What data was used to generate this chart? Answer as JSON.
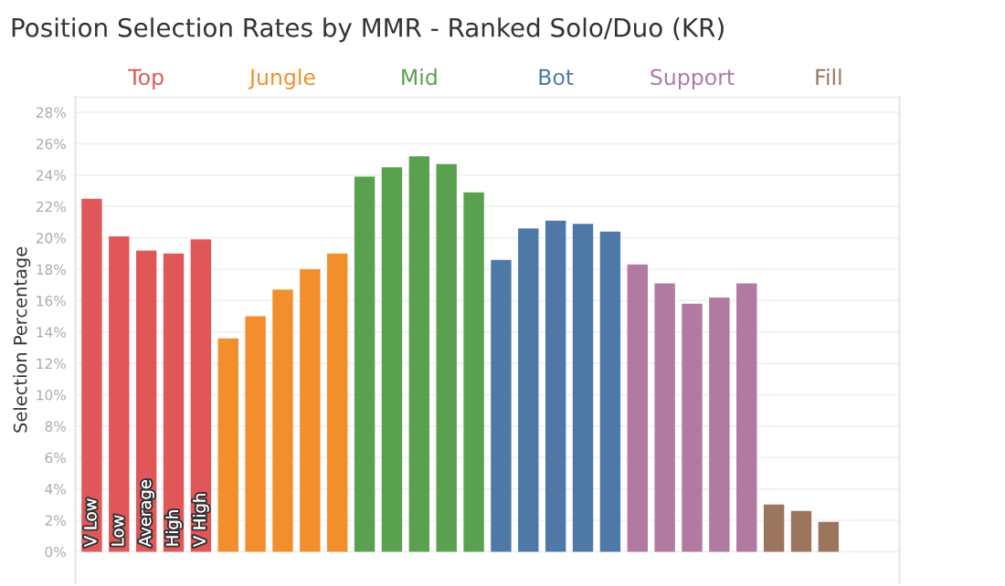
{
  "chart_data": {
    "type": "bar",
    "title": "Position Selection Rates by MMR - Ranked Solo/Duo (KR)",
    "ylabel": "Selection Percentage",
    "categories": [
      "V Low",
      "Low",
      "Average",
      "High",
      "V High",
      null,
      null,
      null,
      null,
      null,
      null,
      null,
      null,
      null,
      null,
      null,
      null,
      null,
      null,
      null,
      null,
      null,
      null,
      null,
      null,
      null,
      null,
      null,
      null,
      null
    ],
    "series": [
      {
        "name": "Top",
        "color": "#e15759",
        "values": [
          22.5,
          20.1,
          19.2,
          19.0,
          19.9,
          null,
          null,
          null,
          null,
          null,
          null,
          null,
          null,
          null,
          null,
          null,
          null,
          null,
          null,
          null,
          null,
          null,
          null,
          null,
          null,
          null,
          null,
          null,
          null,
          null
        ]
      },
      {
        "name": "Jungle",
        "color": "#f28e2b",
        "values": [
          null,
          null,
          null,
          null,
          null,
          13.6,
          15.0,
          16.7,
          18.0,
          19.0,
          null,
          null,
          null,
          null,
          null,
          null,
          null,
          null,
          null,
          null,
          null,
          null,
          null,
          null,
          null,
          null,
          null,
          null,
          null,
          null
        ]
      },
      {
        "name": "Mid",
        "color": "#59a14f",
        "values": [
          null,
          null,
          null,
          null,
          null,
          null,
          null,
          null,
          null,
          null,
          23.9,
          24.5,
          25.2,
          24.7,
          22.9,
          null,
          null,
          null,
          null,
          null,
          null,
          null,
          null,
          null,
          null,
          null,
          null,
          null,
          null,
          null
        ]
      },
      {
        "name": "Bot",
        "color": "#4e79a7",
        "values": [
          null,
          null,
          null,
          null,
          null,
          null,
          null,
          null,
          null,
          null,
          null,
          null,
          null,
          null,
          null,
          18.6,
          20.6,
          21.1,
          20.9,
          20.4,
          null,
          null,
          null,
          null,
          null,
          null,
          null,
          null,
          null,
          null
        ]
      },
      {
        "name": "Support",
        "color": "#b07aa1",
        "values": [
          null,
          null,
          null,
          null,
          null,
          null,
          null,
          null,
          null,
          null,
          null,
          null,
          null,
          null,
          null,
          null,
          null,
          null,
          null,
          null,
          18.3,
          17.1,
          15.8,
          16.2,
          17.1,
          null,
          null,
          null,
          null,
          null
        ]
      },
      {
        "name": "Fill",
        "color": "#9c755f",
        "values": [
          null,
          null,
          null,
          null,
          null,
          null,
          null,
          null,
          null,
          null,
          null,
          null,
          null,
          null,
          null,
          null,
          null,
          null,
          null,
          null,
          null,
          null,
          null,
          null,
          null,
          3.0,
          2.6,
          1.9,
          null,
          null
        ]
      }
    ],
    "ylim": [
      -2,
      29
    ],
    "yticks": [
      {
        "value": 0,
        "label": "0%"
      },
      {
        "value": 2,
        "label": "2%"
      },
      {
        "value": 4,
        "label": "4%"
      },
      {
        "value": 6,
        "label": "6%"
      },
      {
        "value": 8,
        "label": "8%"
      },
      {
        "value": 10,
        "label": "10%"
      },
      {
        "value": 12,
        "label": "12%"
      },
      {
        "value": 14,
        "label": "14%"
      },
      {
        "value": 16,
        "label": "16%"
      },
      {
        "value": 18,
        "label": "18%"
      },
      {
        "value": 20,
        "label": "20%"
      },
      {
        "value": 22,
        "label": "22%"
      },
      {
        "value": 24,
        "label": "24%"
      },
      {
        "value": 26,
        "label": "26%"
      },
      {
        "value": 28,
        "label": "28%"
      }
    ],
    "grid": "y",
    "tick_labels": "y"
  }
}
